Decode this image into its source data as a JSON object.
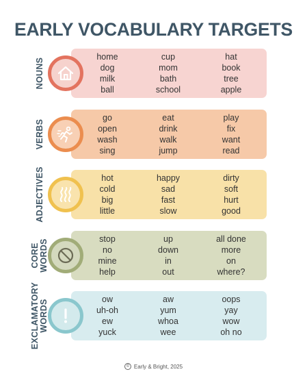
{
  "title": "EARLY VOCABULARY TARGETS",
  "sections": [
    {
      "label_lines": [
        "NOUNS"
      ],
      "icon": "house-icon",
      "colors": {
        "panel": "#f7d4d1",
        "ring": "#e3735f",
        "inner": "#f6d2cd"
      },
      "words": [
        "home",
        "cup",
        "hat",
        "dog",
        "mom",
        "book",
        "milk",
        "bath",
        "tree",
        "ball",
        "school",
        "apple"
      ]
    },
    {
      "label_lines": [
        "VERBS"
      ],
      "icon": "running-person-icon",
      "colors": {
        "panel": "#f6c9a8",
        "ring": "#eb8d4f",
        "inner": "#f8d0b5"
      },
      "words": [
        "go",
        "eat",
        "play",
        "open",
        "drink",
        "fix",
        "wash",
        "walk",
        "want",
        "sing",
        "jump",
        "read"
      ]
    },
    {
      "label_lines": [
        "ADJECTIVES"
      ],
      "icon": "heat-waves-icon",
      "colors": {
        "panel": "#f8e1a8",
        "ring": "#f0c14f",
        "inner": "#f9e3ad"
      },
      "words": [
        "hot",
        "happy",
        "dirty",
        "cold",
        "sad",
        "soft",
        "big",
        "fast",
        "hurt",
        "little",
        "slow",
        "good"
      ]
    },
    {
      "label_lines": [
        "CORE",
        "WORDS"
      ],
      "icon": "prohibited-icon",
      "colors": {
        "panel": "#d8dcc0",
        "ring": "#a1ac78",
        "inner": "#d4d9be"
      },
      "words": [
        "stop",
        "up",
        "all done",
        "no",
        "down",
        "more",
        "mine",
        "in",
        "on",
        "help",
        "out",
        "where?"
      ]
    },
    {
      "label_lines": [
        "EXCLAMATORY",
        "WORDS"
      ],
      "icon": "exclamation-icon",
      "colors": {
        "panel": "#d8ecef",
        "ring": "#8ac7cd",
        "inner": "#d3eaec"
      },
      "words": [
        "ow",
        "aw",
        "oops",
        "uh-oh",
        "yum",
        "yay",
        "ew",
        "whoa",
        "wow",
        "yuck",
        "wee",
        "oh no"
      ]
    }
  ],
  "footer": {
    "symbol": "©",
    "text": "Early & Bright, 2025"
  }
}
